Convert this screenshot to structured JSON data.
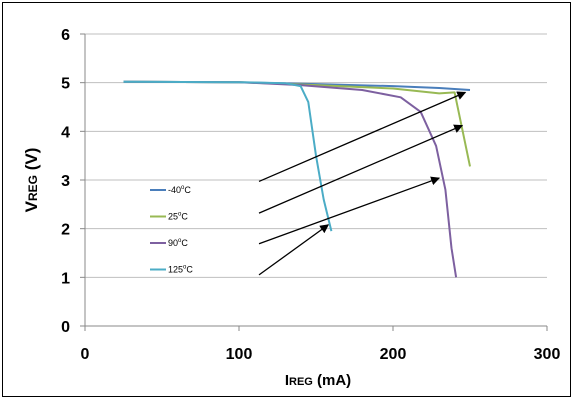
{
  "chart_data": {
    "type": "line",
    "xlabel": {
      "main": "I",
      "sub": "REG",
      "unit": " (mA)"
    },
    "ylabel": {
      "main": "V",
      "sub": "REG",
      "unit": " (V)"
    },
    "xlim": [
      0,
      300
    ],
    "ylim": [
      0,
      6
    ],
    "x_ticks": [
      "0",
      "100",
      "200",
      "300"
    ],
    "y_ticks": [
      "0",
      "1",
      "2",
      "3",
      "4",
      "5",
      "6"
    ],
    "grid": "horizontal",
    "legend_position": "inside-left",
    "series": [
      {
        "name": "-40",
        "unit": "C",
        "color": "#4a7ebb",
        "points": [
          [
            25,
            5.02
          ],
          [
            100,
            5.01
          ],
          [
            150,
            4.97
          ],
          [
            200,
            4.93
          ],
          [
            230,
            4.89
          ],
          [
            250,
            4.85
          ]
        ]
      },
      {
        "name": "25",
        "unit": "C",
        "color": "#98b954",
        "points": [
          [
            25,
            5.02
          ],
          [
            100,
            5.01
          ],
          [
            150,
            4.95
          ],
          [
            200,
            4.88
          ],
          [
            230,
            4.78
          ],
          [
            240,
            4.8
          ],
          [
            250,
            3.28
          ]
        ]
      },
      {
        "name": "90",
        "unit": "C",
        "color": "#7d60a0",
        "points": [
          [
            25,
            5.02
          ],
          [
            100,
            5.01
          ],
          [
            140,
            4.95
          ],
          [
            180,
            4.85
          ],
          [
            205,
            4.7
          ],
          [
            218,
            4.4
          ],
          [
            228,
            3.7
          ],
          [
            234,
            2.8
          ],
          [
            238,
            1.6
          ],
          [
            241,
            1.0
          ]
        ]
      },
      {
        "name": "125",
        "unit": "C",
        "color": "#4bacc6",
        "points": [
          [
            25,
            5.02
          ],
          [
            100,
            5.01
          ],
          [
            130,
            4.99
          ],
          [
            140,
            4.93
          ],
          [
            145,
            4.6
          ],
          [
            150,
            3.5
          ],
          [
            155,
            2.6
          ],
          [
            160,
            1.95
          ]
        ]
      }
    ],
    "annotations": [
      {
        "type": "arrow",
        "from": [
          113,
          2.97
        ],
        "to": [
          247,
          4.8
        ]
      },
      {
        "type": "arrow",
        "from": [
          113,
          2.32
        ],
        "to": [
          245,
          4.12
        ]
      },
      {
        "type": "arrow",
        "from": [
          113,
          1.69
        ],
        "to": [
          230,
          3.04
        ]
      },
      {
        "type": "arrow",
        "from": [
          113,
          1.05
        ],
        "to": [
          158,
          2.08
        ]
      }
    ]
  }
}
